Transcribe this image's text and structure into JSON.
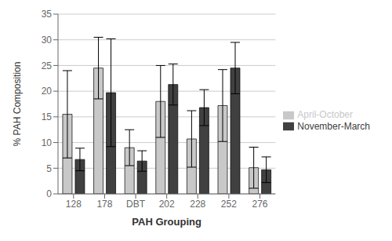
{
  "chart_data": {
    "type": "bar",
    "categories": [
      "128",
      "178",
      "DBT",
      "202",
      "228",
      "252",
      "276"
    ],
    "series": [
      {
        "name": "April-October",
        "color": "#c8c8c8",
        "values": [
          15.5,
          24.5,
          9.0,
          18.0,
          10.7,
          17.2,
          5.1
        ],
        "errors": [
          8.5,
          6.0,
          3.5,
          7.0,
          5.5,
          7.0,
          4.0
        ]
      },
      {
        "name": "November-March",
        "color": "#404040",
        "values": [
          6.7,
          19.7,
          6.4,
          21.3,
          16.8,
          24.5,
          4.7
        ],
        "errors": [
          2.2,
          10.5,
          2.0,
          4.0,
          3.5,
          5.0,
          2.5
        ]
      }
    ],
    "xlabel": "PAH Grouping",
    "ylabel": "% PAH Composition",
    "ylim": [
      0,
      35
    ],
    "yticks": [
      0,
      5,
      10,
      15,
      20,
      25,
      30,
      35
    ],
    "grid": true,
    "legend": "right"
  }
}
